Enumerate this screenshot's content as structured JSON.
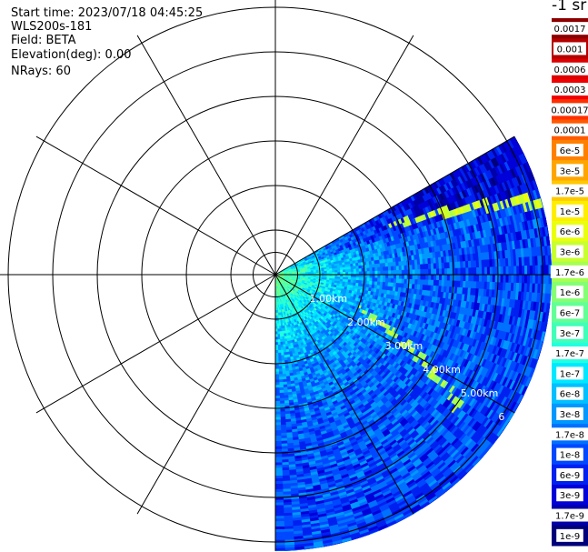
{
  "header": {
    "start_time": "Start time: 2023/07/18 04:45:25",
    "instrument": "WLS200s-181",
    "field": "Field: BETA",
    "elevation": "Elevation(deg): 0.00",
    "nrays": "NRays: 60"
  },
  "chart_data": {
    "type": "heatmap",
    "projection": "polar-ppi",
    "title": "",
    "field": "BETA",
    "elevation_deg": 0.0,
    "n_rays": 60,
    "azimuth_range_deg": [
      60,
      180
    ],
    "max_range_km": 6.2,
    "range_rings_km": [
      0.5,
      1.0,
      2.0,
      3.0,
      4.0,
      5.0,
      6.0
    ],
    "spoke_step_deg": 30,
    "range_labels": [
      "",
      "1.00km",
      "2.00km",
      "3.00km",
      "4.00km",
      "5.00km",
      "6"
    ],
    "colorbar_title": "-1 sr",
    "colorbar_labels": [
      "0.0017",
      "0.001",
      "0.0006",
      "0.0003",
      "0.00017",
      "0.0001",
      "6e-5",
      "3e-5",
      "1.7e-5",
      "1e-5",
      "6e-6",
      "3e-6",
      "1.7e-6",
      "1e-6",
      "6e-7",
      "3e-7",
      "1.7e-7",
      "1e-7",
      "6e-8",
      "3e-8",
      "1.7e-8",
      "1e-8",
      "6e-9",
      "3e-9",
      "1.7e-9",
      "1e-9"
    ],
    "colorbar_colors": [
      "#8b0000",
      "#b40000",
      "#dc0000",
      "#f00000",
      "#ff3000",
      "#ff5a00",
      "#ff8000",
      "#ffa500",
      "#ffc800",
      "#ffee00",
      "#eaff10",
      "#c8ff30",
      "#a6ff52",
      "#84ff74",
      "#62ff96",
      "#40ffb8",
      "#20ffe0",
      "#00e8ff",
      "#00c0ff",
      "#0098ff",
      "#0070ff",
      "#0048ff",
      "#0020f0",
      "#0000d8",
      "#0000a8",
      "#00007a"
    ],
    "features": {
      "near_field_beta": "1e-6",
      "background_beta": "1e-8",
      "plume_beta": "3e-6"
    }
  }
}
